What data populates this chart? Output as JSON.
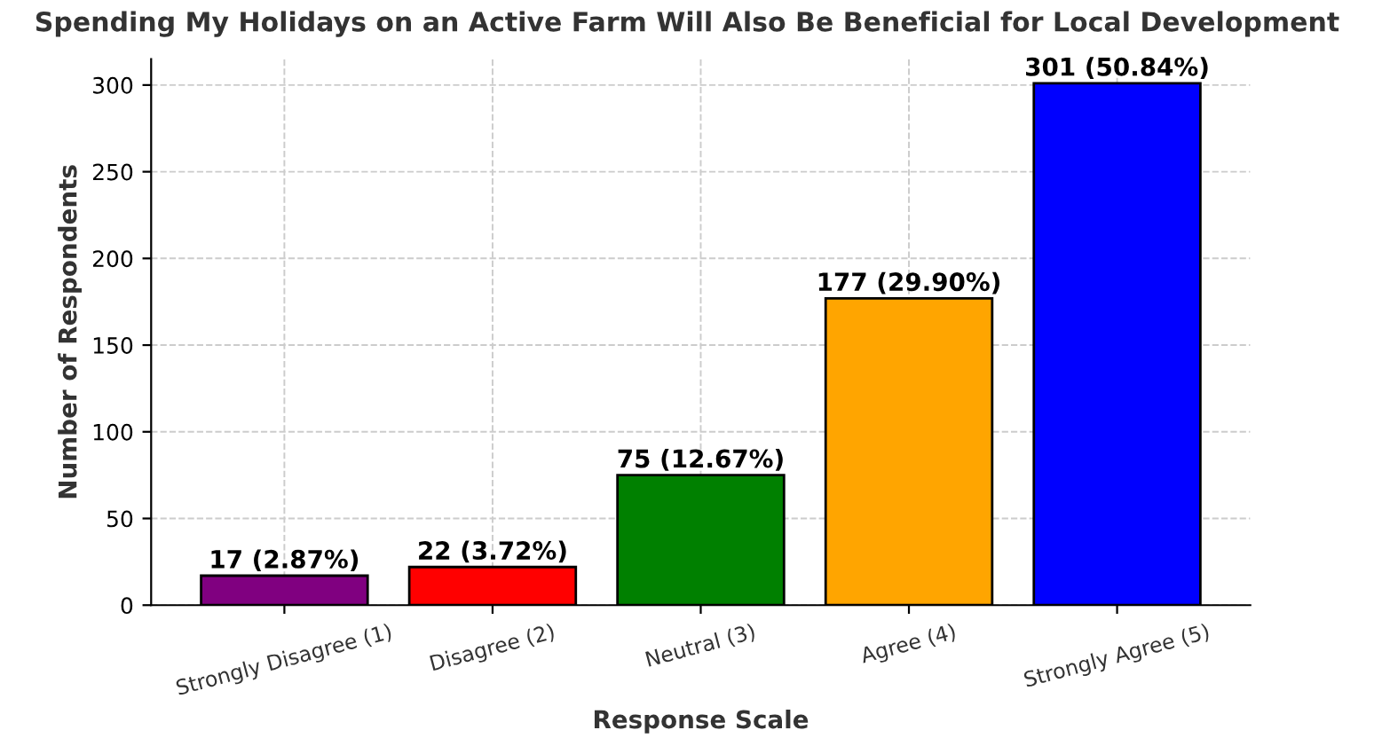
{
  "chart_data": {
    "type": "bar",
    "title": "Spending My Holidays on an Active Farm Will Also Be Beneficial for Local Development",
    "xlabel": "Response Scale",
    "ylabel": "Number of Respondents",
    "categories": [
      "Strongly Disagree (1)",
      "Disagree (2)",
      "Neutral (3)",
      "Agree (4)",
      "Strongly Agree (5)"
    ],
    "values": [
      17,
      22,
      75,
      177,
      301
    ],
    "colors": [
      "#800080",
      "#ff0000",
      "#008000",
      "#ffa500",
      "#0000ff"
    ],
    "value_labels": [
      "17 (2.87%)",
      "22 (3.72%)",
      "75 (12.67%)",
      "177 (29.90%)",
      "301 (50.84%)"
    ],
    "ylim": [
      0,
      315
    ],
    "yticks": [
      0,
      50,
      100,
      150,
      200,
      250,
      300
    ],
    "grid": true
  }
}
